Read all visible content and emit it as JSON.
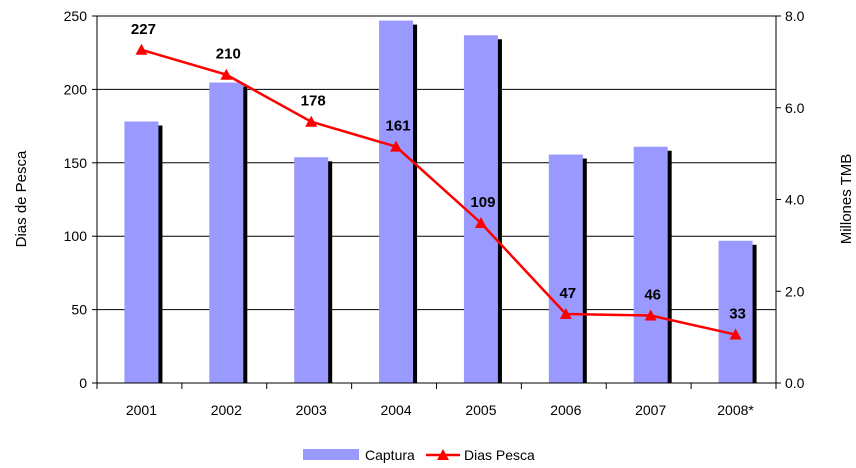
{
  "chart_data": {
    "type": "bar",
    "categories": [
      "2001",
      "2002",
      "2003",
      "2004",
      "2005",
      "2006",
      "2007",
      "2008*"
    ],
    "series": [
      {
        "name": "Captura",
        "type": "bar",
        "axis": "right",
        "values": [
          5.7,
          6.55,
          4.92,
          7.9,
          7.58,
          4.98,
          5.15,
          3.1
        ],
        "color": "#9999ff"
      },
      {
        "name": "Dias Pesca",
        "type": "line",
        "axis": "left",
        "values": [
          227,
          210,
          178,
          161,
          109,
          47,
          46,
          33
        ],
        "data_labels": [
          "227",
          "210",
          "178",
          "161",
          "109",
          "47",
          "46",
          "33"
        ],
        "color": "#ff0000"
      }
    ],
    "ylabel": "Dias de Pesca",
    "ylim": [
      0,
      250
    ],
    "yticks": [
      "0",
      "50",
      "100",
      "150",
      "200",
      "250"
    ],
    "y2label": "Millones TMB",
    "y2lim": [
      0,
      8
    ],
    "y2ticks": [
      "0.0",
      "2.0",
      "4.0",
      "6.0",
      "8.0"
    ],
    "grid": true,
    "legend_position": "bottom"
  }
}
